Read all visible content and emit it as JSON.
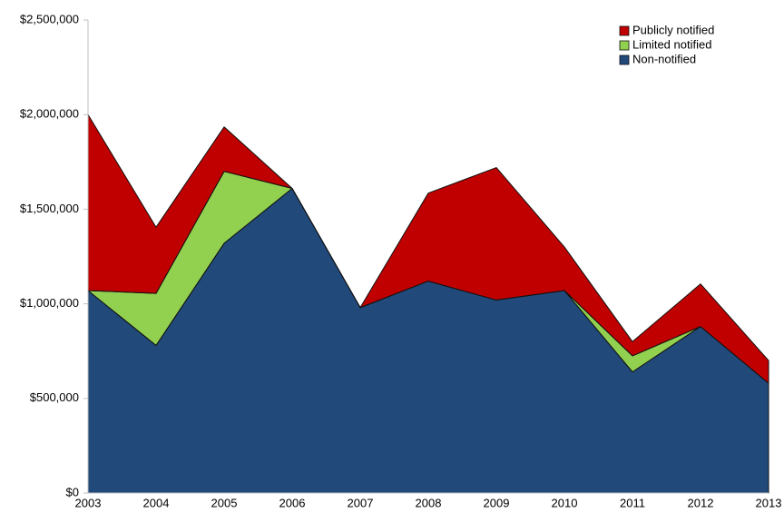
{
  "chart_data": {
    "type": "area",
    "stacked": true,
    "categories": [
      "2003",
      "2004",
      "2005",
      "2006",
      "2007",
      "2008",
      "2009",
      "2010",
      "2011",
      "2012",
      "2013"
    ],
    "series": [
      {
        "name": "Non-notified",
        "color": "#214a7b",
        "values": [
          1070000,
          780000,
          1320000,
          1610000,
          980000,
          1120000,
          1020000,
          1070000,
          640000,
          880000,
          580000
        ]
      },
      {
        "name": "Limited notified",
        "color": "#92d050",
        "values": [
          0,
          275000,
          380000,
          0,
          0,
          0,
          0,
          0,
          85000,
          0,
          0
        ]
      },
      {
        "name": "Publicly notified",
        "color": "#c00000",
        "values": [
          930000,
          350000,
          235000,
          0,
          0,
          465000,
          700000,
          230000,
          75000,
          225000,
          120000
        ]
      }
    ],
    "ylim": [
      0,
      2500000
    ],
    "yticks": [
      {
        "value": 0,
        "label": "$0"
      },
      {
        "value": 500000,
        "label": "$500,000"
      },
      {
        "value": 1000000,
        "label": "$1,000,000"
      },
      {
        "value": 1500000,
        "label": "$1,500,000"
      },
      {
        "value": 2000000,
        "label": "$2,000,000"
      },
      {
        "value": 2500000,
        "label": "$2,500,000"
      }
    ],
    "legend": "top-right"
  }
}
